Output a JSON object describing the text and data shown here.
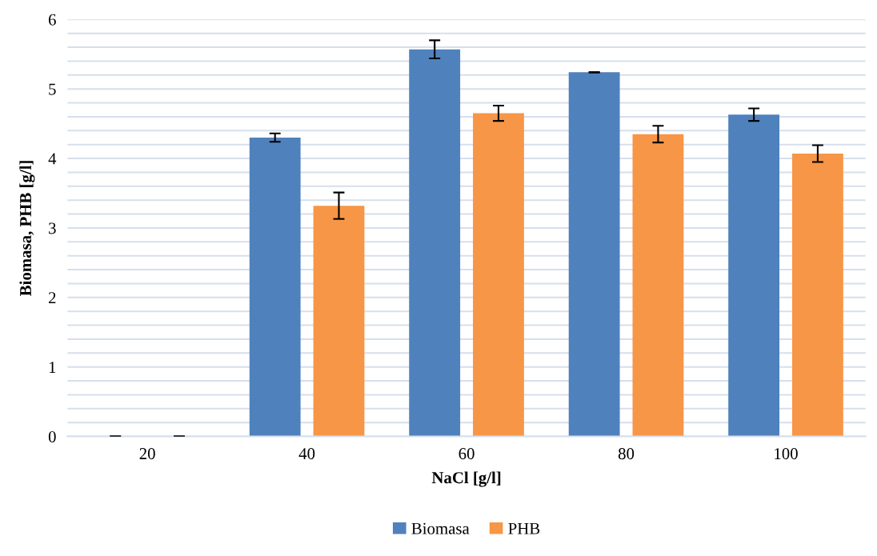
{
  "chart_data": {
    "type": "bar",
    "xlabel": "NaCl [g/l]",
    "ylabel": "Biomasa, PHB [g/l]",
    "categories": [
      "20",
      "40",
      "60",
      "80",
      "100"
    ],
    "series": [
      {
        "name": "Biomasa",
        "color": "#4f81bd",
        "values": [
          0,
          4.3,
          5.57,
          5.24,
          4.63
        ],
        "errors": [
          0,
          0.06,
          0.13,
          0,
          0.09
        ]
      },
      {
        "name": "PHB",
        "color": "#f79646",
        "values": [
          0,
          3.32,
          4.65,
          4.35,
          4.07
        ],
        "errors": [
          0,
          0.19,
          0.11,
          0.12,
          0.12
        ]
      }
    ],
    "ylim": [
      0,
      6
    ],
    "yticks": [
      0,
      {
        "value": 0.2,
        "label": null
      },
      {
        "value": 0.4,
        "label": null
      },
      {
        "value": 0.6,
        "label": null
      },
      {
        "value": 0.8,
        "label": null
      },
      1,
      {
        "value": 1.2,
        "label": null
      },
      {
        "value": 1.4,
        "label": null
      },
      {
        "value": 1.6,
        "label": null
      },
      {
        "value": 1.8,
        "label": null
      },
      2,
      {
        "value": 2.2,
        "label": null
      },
      {
        "value": 2.4,
        "label": null
      },
      {
        "value": 2.6,
        "label": null
      },
      {
        "value": 2.8,
        "label": null
      },
      3,
      {
        "value": 3.2,
        "label": null
      },
      {
        "value": 3.4,
        "label": null
      },
      {
        "value": 3.6,
        "label": null
      },
      {
        "value": 3.8,
        "label": null
      },
      4,
      {
        "value": 4.2,
        "label": null
      },
      {
        "value": 4.4,
        "label": null
      },
      {
        "value": 4.6,
        "label": null
      },
      {
        "value": 4.8,
        "label": null
      },
      5,
      {
        "value": 5.2,
        "label": null
      },
      {
        "value": 5.4,
        "label": null
      },
      {
        "value": 5.6,
        "label": null
      },
      {
        "value": 5.8,
        "label": null
      },
      6
    ],
    "grid": "y",
    "legend": "bottom"
  }
}
